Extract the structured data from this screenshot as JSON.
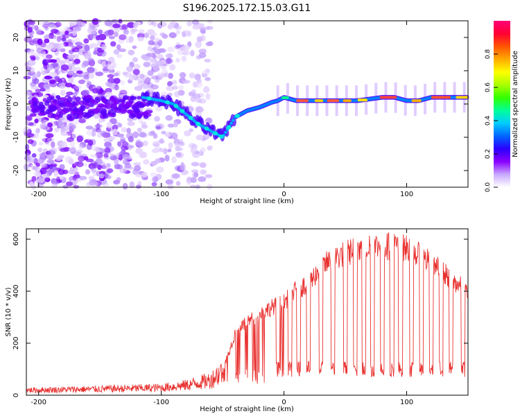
{
  "title": "S196.2025.172.15.03.G11",
  "chart_data": [
    {
      "type": "heatmap",
      "xlabel": "Height of straight line (km)",
      "ylabel": "Frequency (Hz)",
      "xlim": [
        -210,
        150
      ],
      "ylim": [
        -25,
        25
      ],
      "xticks": [
        -200,
        -100,
        0,
        100
      ],
      "yticks": [
        -20,
        -10,
        0,
        10,
        20
      ],
      "colorbar": {
        "label": "Normalized spectral amplitude",
        "range": [
          0,
          1
        ],
        "ticks": [
          "0.0",
          "0.2",
          "0.4",
          "0.6",
          "0.8"
        ],
        "colormap": [
          "#ffffff",
          "#c8a8ff",
          "#8a00ff",
          "#2a00ff",
          "#0066ff",
          "#00ccff",
          "#00ff99",
          "#33ff00",
          "#aaff00",
          "#ffff00",
          "#ffaa00",
          "#ff5500",
          "#ff0033",
          "#ff0077"
        ]
      },
      "ridge": {
        "description_points_x": [
          -115,
          -100,
          -90,
          -80,
          -70,
          -60,
          -50,
          -45,
          -40,
          -30,
          -20,
          -10,
          -5,
          0,
          10,
          20,
          40,
          60,
          80,
          90,
          100,
          110,
          120,
          140,
          150
        ],
        "frequency_y": [
          2,
          1,
          0,
          -3,
          -6,
          -8,
          -10,
          -7,
          -4,
          -2,
          -1,
          0.5,
          1,
          2,
          1,
          1,
          1,
          1,
          2,
          2,
          1,
          1,
          2,
          2,
          2
        ]
      }
    },
    {
      "type": "line",
      "xlabel": "Height of straight line (km)",
      "ylabel": "SNR (10 * v/v)",
      "xlim": [
        -210,
        150
      ],
      "ylim": [
        0,
        640
      ],
      "xticks": [
        -200,
        -100,
        0,
        100
      ],
      "yticks": [
        0,
        200,
        400,
        600
      ],
      "series": [
        {
          "color": "#e8302e",
          "envelope_x": [
            -210,
            -150,
            -100,
            -80,
            -60,
            -50,
            -40,
            -30,
            -20,
            -10,
            0,
            10,
            20,
            30,
            40,
            50,
            60,
            70,
            80,
            90,
            100,
            110,
            120,
            130,
            140,
            150
          ],
          "envelope_y": [
            20,
            25,
            30,
            40,
            60,
            100,
            250,
            300,
            330,
            360,
            380,
            430,
            460,
            520,
            560,
            580,
            600,
            610,
            610,
            610,
            600,
            570,
            540,
            500,
            460,
            420
          ],
          "dropout_x": [
            -15,
            -5,
            5,
            12,
            20,
            30,
            40,
            50,
            58,
            65,
            72,
            80,
            88,
            95,
            104,
            112,
            120,
            128,
            136,
            146
          ],
          "dropout_y": 100
        }
      ]
    }
  ]
}
